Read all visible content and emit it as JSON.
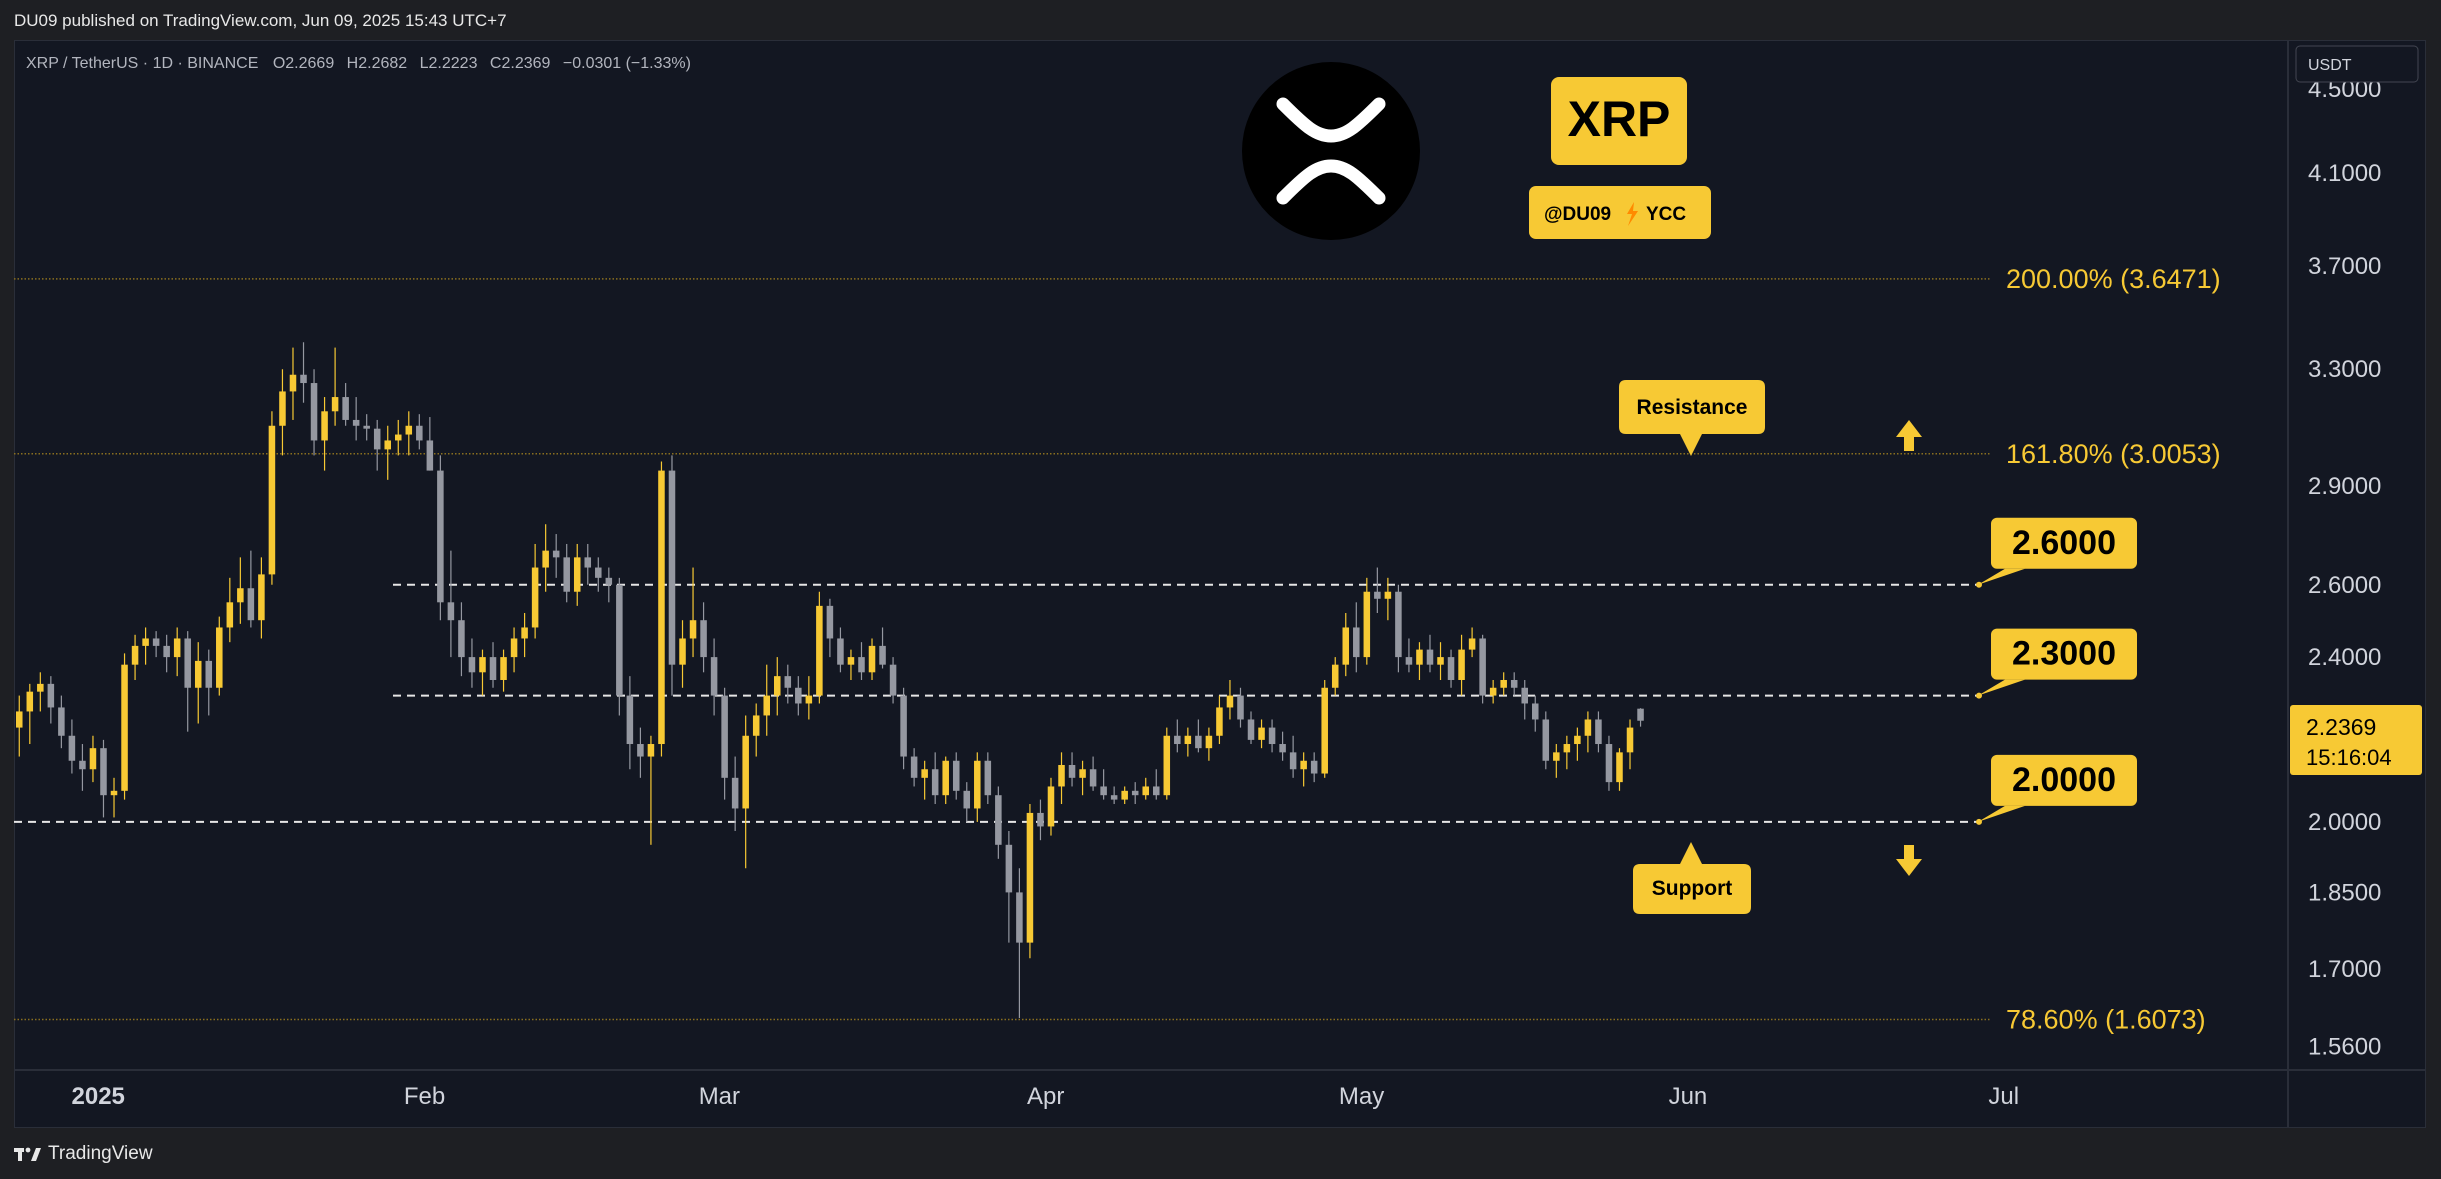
{
  "header": {
    "published": "DU09 published on TradingView.com, Jun 09, 2025 15:43 UTC+7"
  },
  "footer": {
    "brand": "TradingView"
  },
  "symbol_info": {
    "text": "XRP / TetherUS · 1D · BINANCE",
    "open": "O2.2669",
    "high": "H2.2682",
    "low": "L2.2223",
    "close": "C2.2369",
    "change": "−0.0301 (−1.33%)"
  },
  "currency_label": "USDT",
  "badge": {
    "ticker": "XRP",
    "handle": "@DU09",
    "suffix": "YCC"
  },
  "current_price": {
    "value": "2.2369",
    "countdown": "15:16:04"
  },
  "annotations": {
    "resistance": "Resistance",
    "support": "Support",
    "levels": [
      "2.6000",
      "2.3000",
      "2.0000"
    ],
    "fib": [
      "200.00% (3.6471)",
      "161.80% (3.0053)",
      "78.60% (1.6073)"
    ]
  },
  "colors": {
    "up": "#f7c934",
    "down": "#9598a1",
    "accent": "#f7c934",
    "bg": "#131722"
  },
  "chart_data": {
    "type": "candlestick",
    "y_scale": "log",
    "ylim": [
      1.52,
      4.75
    ],
    "y_ticks": [
      "4.5000",
      "4.1000",
      "3.7000",
      "3.3000",
      "2.9000",
      "2.6000",
      "2.4000",
      "2.0000",
      "1.8500",
      "1.7000",
      "1.5600"
    ],
    "x_ticks": [
      {
        "label": "2025",
        "date": "2025-01-01"
      },
      {
        "label": "Feb",
        "date": "2025-02-01"
      },
      {
        "label": "Mar",
        "date": "2025-03-01"
      },
      {
        "label": "Apr",
        "date": "2025-04-01"
      },
      {
        "label": "May",
        "date": "2025-05-01"
      },
      {
        "label": "Jun",
        "date": "2025-06-01"
      },
      {
        "label": "Jul",
        "date": "2025-07-01"
      }
    ],
    "xlim": [
      "2024-12-24",
      "2025-07-28"
    ],
    "support_resistance": [
      2.6,
      2.3,
      2.0
    ],
    "fib_levels": [
      3.6471,
      3.0053,
      1.6073
    ],
    "candles": {
      "start_date": "2024-12-24",
      "columns": [
        "open",
        "high",
        "low",
        "close"
      ],
      "ohlc": [
        [
          2.22,
          2.3,
          2.15,
          2.26
        ],
        [
          2.26,
          2.33,
          2.18,
          2.31
        ],
        [
          2.31,
          2.36,
          2.26,
          2.33
        ],
        [
          2.33,
          2.35,
          2.23,
          2.27
        ],
        [
          2.27,
          2.3,
          2.17,
          2.2
        ],
        [
          2.2,
          2.24,
          2.11,
          2.14
        ],
        [
          2.14,
          2.18,
          2.07,
          2.12
        ],
        [
          2.12,
          2.2,
          2.09,
          2.17
        ],
        [
          2.17,
          2.19,
          2.01,
          2.06
        ],
        [
          2.06,
          2.1,
          2.01,
          2.07
        ],
        [
          2.07,
          2.41,
          2.05,
          2.38
        ],
        [
          2.38,
          2.46,
          2.34,
          2.43
        ],
        [
          2.43,
          2.48,
          2.38,
          2.45
        ],
        [
          2.45,
          2.47,
          2.4,
          2.43
        ],
        [
          2.43,
          2.46,
          2.36,
          2.4
        ],
        [
          2.4,
          2.48,
          2.35,
          2.45
        ],
        [
          2.45,
          2.47,
          2.21,
          2.32
        ],
        [
          2.32,
          2.44,
          2.23,
          2.39
        ],
        [
          2.39,
          2.42,
          2.25,
          2.32
        ],
        [
          2.32,
          2.51,
          2.3,
          2.48
        ],
        [
          2.48,
          2.62,
          2.44,
          2.55
        ],
        [
          2.55,
          2.68,
          2.49,
          2.59
        ],
        [
          2.59,
          2.7,
          2.48,
          2.5
        ],
        [
          2.5,
          2.68,
          2.45,
          2.63
        ],
        [
          2.63,
          3.15,
          2.6,
          3.1
        ],
        [
          3.1,
          3.3,
          3.0,
          3.22
        ],
        [
          3.22,
          3.38,
          3.12,
          3.28
        ],
        [
          3.28,
          3.4,
          3.18,
          3.25
        ],
        [
          3.25,
          3.3,
          3.0,
          3.05
        ],
        [
          3.05,
          3.2,
          2.95,
          3.15
        ],
        [
          3.15,
          3.38,
          3.1,
          3.2
        ],
        [
          3.2,
          3.25,
          3.1,
          3.12
        ],
        [
          3.12,
          3.2,
          3.05,
          3.1
        ],
        [
          3.1,
          3.14,
          3.05,
          3.09
        ],
        [
          3.09,
          3.12,
          2.95,
          3.02
        ],
        [
          3.02,
          3.1,
          2.92,
          3.05
        ],
        [
          3.05,
          3.12,
          3.0,
          3.07
        ],
        [
          3.07,
          3.15,
          3.0,
          3.1
        ],
        [
          3.1,
          3.14,
          3.02,
          3.05
        ],
        [
          3.05,
          3.13,
          2.95,
          2.95
        ],
        [
          2.95,
          3.0,
          2.5,
          2.55
        ],
        [
          2.55,
          2.7,
          2.4,
          2.5
        ],
        [
          2.5,
          2.55,
          2.35,
          2.4
        ],
        [
          2.4,
          2.45,
          2.32,
          2.36
        ],
        [
          2.36,
          2.42,
          2.3,
          2.4
        ],
        [
          2.4,
          2.44,
          2.32,
          2.34
        ],
        [
          2.34,
          2.42,
          2.31,
          2.4
        ],
        [
          2.4,
          2.48,
          2.36,
          2.45
        ],
        [
          2.45,
          2.52,
          2.4,
          2.48
        ],
        [
          2.48,
          2.72,
          2.45,
          2.65
        ],
        [
          2.65,
          2.78,
          2.58,
          2.7
        ],
        [
          2.7,
          2.75,
          2.62,
          2.68
        ],
        [
          2.68,
          2.72,
          2.55,
          2.58
        ],
        [
          2.58,
          2.72,
          2.54,
          2.68
        ],
        [
          2.68,
          2.72,
          2.6,
          2.65
        ],
        [
          2.65,
          2.68,
          2.58,
          2.62
        ],
        [
          2.62,
          2.65,
          2.55,
          2.6
        ],
        [
          2.6,
          2.62,
          2.25,
          2.3
        ],
        [
          2.3,
          2.35,
          2.12,
          2.18
        ],
        [
          2.18,
          2.22,
          2.1,
          2.15
        ],
        [
          2.15,
          2.2,
          1.95,
          2.18
        ],
        [
          2.18,
          2.98,
          2.15,
          2.95
        ],
        [
          2.95,
          3.0,
          2.3,
          2.38
        ],
        [
          2.38,
          2.5,
          2.32,
          2.45
        ],
        [
          2.45,
          2.65,
          2.4,
          2.5
        ],
        [
          2.5,
          2.55,
          2.36,
          2.4
        ],
        [
          2.4,
          2.45,
          2.25,
          2.3
        ],
        [
          2.3,
          2.32,
          2.05,
          2.1
        ],
        [
          2.1,
          2.15,
          1.98,
          2.03
        ],
        [
          2.03,
          2.25,
          1.9,
          2.2
        ],
        [
          2.2,
          2.28,
          2.15,
          2.25
        ],
        [
          2.25,
          2.38,
          2.2,
          2.3
        ],
        [
          2.3,
          2.4,
          2.25,
          2.35
        ],
        [
          2.35,
          2.38,
          2.28,
          2.32
        ],
        [
          2.32,
          2.35,
          2.25,
          2.28
        ],
        [
          2.28,
          2.35,
          2.24,
          2.3
        ],
        [
          2.3,
          2.58,
          2.28,
          2.54
        ],
        [
          2.54,
          2.56,
          2.4,
          2.45
        ],
        [
          2.45,
          2.48,
          2.36,
          2.38
        ],
        [
          2.38,
          2.42,
          2.34,
          2.4
        ],
        [
          2.4,
          2.44,
          2.34,
          2.36
        ],
        [
          2.36,
          2.45,
          2.34,
          2.43
        ],
        [
          2.43,
          2.48,
          2.37,
          2.38
        ],
        [
          2.38,
          2.4,
          2.28,
          2.3
        ],
        [
          2.3,
          2.32,
          2.12,
          2.15
        ],
        [
          2.15,
          2.17,
          2.08,
          2.1
        ],
        [
          2.1,
          2.14,
          2.05,
          2.12
        ],
        [
          2.12,
          2.16,
          2.04,
          2.06
        ],
        [
          2.06,
          2.15,
          2.04,
          2.14
        ],
        [
          2.14,
          2.16,
          2.05,
          2.07
        ],
        [
          2.07,
          2.09,
          2.0,
          2.03
        ],
        [
          2.03,
          2.16,
          2.0,
          2.14
        ],
        [
          2.14,
          2.16,
          2.04,
          2.06
        ],
        [
          2.06,
          2.08,
          1.92,
          1.95
        ],
        [
          1.95,
          1.98,
          1.75,
          1.85
        ],
        [
          1.85,
          1.9,
          1.61,
          1.75
        ],
        [
          1.75,
          2.04,
          1.72,
          2.02
        ],
        [
          2.02,
          2.05,
          1.96,
          1.99
        ],
        [
          1.99,
          2.1,
          1.97,
          2.08
        ],
        [
          2.08,
          2.16,
          2.04,
          2.13
        ],
        [
          2.13,
          2.16,
          2.08,
          2.1
        ],
        [
          2.1,
          2.14,
          2.06,
          2.12
        ],
        [
          2.12,
          2.15,
          2.07,
          2.08
        ],
        [
          2.08,
          2.12,
          2.05,
          2.06
        ],
        [
          2.06,
          2.08,
          2.04,
          2.05
        ],
        [
          2.05,
          2.08,
          2.04,
          2.07
        ],
        [
          2.07,
          2.09,
          2.04,
          2.06
        ],
        [
          2.06,
          2.1,
          2.05,
          2.08
        ],
        [
          2.08,
          2.12,
          2.05,
          2.06
        ],
        [
          2.06,
          2.22,
          2.05,
          2.2
        ],
        [
          2.2,
          2.24,
          2.16,
          2.18
        ],
        [
          2.18,
          2.22,
          2.15,
          2.2
        ],
        [
          2.2,
          2.24,
          2.16,
          2.17
        ],
        [
          2.17,
          2.22,
          2.14,
          2.2
        ],
        [
          2.2,
          2.3,
          2.18,
          2.27
        ],
        [
          2.27,
          2.34,
          2.24,
          2.3
        ],
        [
          2.3,
          2.32,
          2.22,
          2.24
        ],
        [
          2.24,
          2.26,
          2.18,
          2.19
        ],
        [
          2.19,
          2.24,
          2.17,
          2.22
        ],
        [
          2.22,
          2.24,
          2.16,
          2.18
        ],
        [
          2.18,
          2.21,
          2.14,
          2.16
        ],
        [
          2.16,
          2.2,
          2.1,
          2.12
        ],
        [
          2.12,
          2.16,
          2.08,
          2.14
        ],
        [
          2.14,
          2.16,
          2.09,
          2.11
        ],
        [
          2.11,
          2.34,
          2.1,
          2.32
        ],
        [
          2.32,
          2.4,
          2.3,
          2.38
        ],
        [
          2.38,
          2.52,
          2.35,
          2.48
        ],
        [
          2.48,
          2.55,
          2.36,
          2.4
        ],
        [
          2.4,
          2.62,
          2.38,
          2.58
        ],
        [
          2.58,
          2.65,
          2.52,
          2.56
        ],
        [
          2.56,
          2.62,
          2.5,
          2.58
        ],
        [
          2.58,
          2.6,
          2.36,
          2.4
        ],
        [
          2.4,
          2.45,
          2.36,
          2.38
        ],
        [
          2.38,
          2.44,
          2.34,
          2.42
        ],
        [
          2.42,
          2.46,
          2.36,
          2.38
        ],
        [
          2.38,
          2.44,
          2.34,
          2.4
        ],
        [
          2.4,
          2.42,
          2.32,
          2.34
        ],
        [
          2.34,
          2.46,
          2.3,
          2.42
        ],
        [
          2.42,
          2.48,
          2.4,
          2.45
        ],
        [
          2.45,
          2.46,
          2.28,
          2.3
        ],
        [
          2.3,
          2.34,
          2.28,
          2.32
        ],
        [
          2.32,
          2.36,
          2.3,
          2.34
        ],
        [
          2.34,
          2.36,
          2.3,
          2.32
        ],
        [
          2.32,
          2.34,
          2.24,
          2.28
        ],
        [
          2.28,
          2.3,
          2.21,
          2.24
        ],
        [
          2.24,
          2.26,
          2.12,
          2.14
        ],
        [
          2.14,
          2.18,
          2.1,
          2.16
        ],
        [
          2.16,
          2.2,
          2.12,
          2.18
        ],
        [
          2.18,
          2.22,
          2.14,
          2.2
        ],
        [
          2.2,
          2.26,
          2.16,
          2.24
        ],
        [
          2.24,
          2.26,
          2.16,
          2.18
        ],
        [
          2.18,
          2.2,
          2.07,
          2.09
        ],
        [
          2.09,
          2.17,
          2.07,
          2.16
        ],
        [
          2.16,
          2.24,
          2.12,
          2.22
        ],
        [
          2.2669,
          2.2682,
          2.2223,
          2.2369
        ]
      ]
    }
  }
}
